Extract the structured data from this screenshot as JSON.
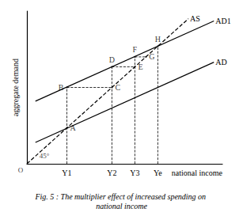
{
  "chart_data": {
    "type": "line",
    "title": "Fig. 5 : The multiplier effect of increased spending on national income",
    "x_label": "national income",
    "y_label": "aggregate demand",
    "xlim": [
      0,
      230
    ],
    "ylim": [
      0,
      200
    ],
    "xticks": [
      {
        "value": 47,
        "label": "Y1"
      },
      {
        "value": 100,
        "label": "Y2"
      },
      {
        "value": 127,
        "label": "Y3"
      },
      {
        "value": 154,
        "label": "Ye"
      }
    ],
    "tick_labels": "x",
    "grid": false,
    "series": [
      {
        "name": "AS",
        "color": "#000000",
        "line_style": "dashed",
        "x": [
          0,
          190
        ],
        "values": [
          0,
          190
        ]
      },
      {
        "name": "AD1",
        "color": "#000000",
        "line_style": "solid",
        "x": [
          10,
          220
        ],
        "values": [
          82,
          187
        ]
      },
      {
        "name": "AD",
        "color": "#000000",
        "line_style": "solid",
        "x": [
          10,
          220
        ],
        "values": [
          28,
          133
        ]
      }
    ],
    "points": {
      "labels": [
        "A",
        "B",
        "C",
        "D",
        "E",
        "F",
        "G",
        "H"
      ],
      "x": [
        47,
        47,
        100,
        100,
        127,
        127,
        140,
        154
      ],
      "y": [
        47,
        100,
        100,
        127,
        127,
        140,
        140,
        154
      ]
    },
    "guides": [
      [
        [
          47,
          0
        ],
        [
          47,
          100
        ]
      ],
      [
        [
          47,
          100
        ],
        [
          100,
          100
        ]
      ],
      [
        [
          100,
          0
        ],
        [
          100,
          127
        ]
      ],
      [
        [
          100,
          127
        ],
        [
          127,
          127
        ]
      ],
      [
        [
          127,
          0
        ],
        [
          127,
          140
        ]
      ],
      [
        [
          127,
          140
        ],
        [
          140,
          140
        ]
      ],
      [
        [
          154,
          0
        ],
        [
          154,
          154
        ]
      ]
    ],
    "annotations": [
      "O",
      "45°"
    ]
  }
}
